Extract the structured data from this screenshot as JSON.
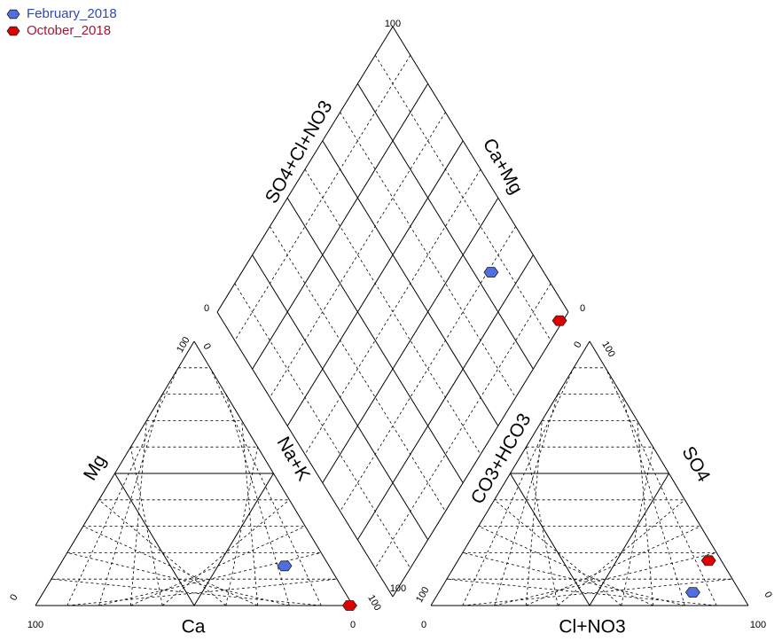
{
  "chart_data": {
    "type": "piper",
    "series": [
      {
        "name": "February_2018",
        "color": "#4f6fe0",
        "text_color": "#2e48b8",
        "Ca": 14,
        "Mg": 15,
        "Na+K": 71,
        "CO3+HCO3": 15,
        "SO4": 5,
        "Cl+NO3": 80
      },
      {
        "name": "October_2018",
        "color": "#e00000",
        "text_color": "#a01838",
        "Ca": 1,
        "Mg": 0,
        "Na+K": 99,
        "CO3+HCO3": 4,
        "SO4": 17,
        "Cl+NO3": 79
      }
    ],
    "cation_axes": [
      {
        "label": "Ca",
        "lim": [
          100,
          0
        ]
      },
      {
        "label": "Mg",
        "lim": [
          0,
          100
        ]
      },
      {
        "label": "Na+K",
        "lim": [
          0,
          100
        ]
      }
    ],
    "anion_axes": [
      {
        "label": "Cl+NO3",
        "lim": [
          0,
          100
        ]
      },
      {
        "label": "CO3+HCO3",
        "lim": [
          100,
          0
        ]
      },
      {
        "label": "SO4",
        "lim": [
          100,
          0
        ]
      }
    ],
    "diamond_axes": [
      "SO4+Cl+NO3",
      "Ca+Mg"
    ],
    "diamond_vertex_ticks": [
      100,
      0,
      0,
      100
    ]
  }
}
